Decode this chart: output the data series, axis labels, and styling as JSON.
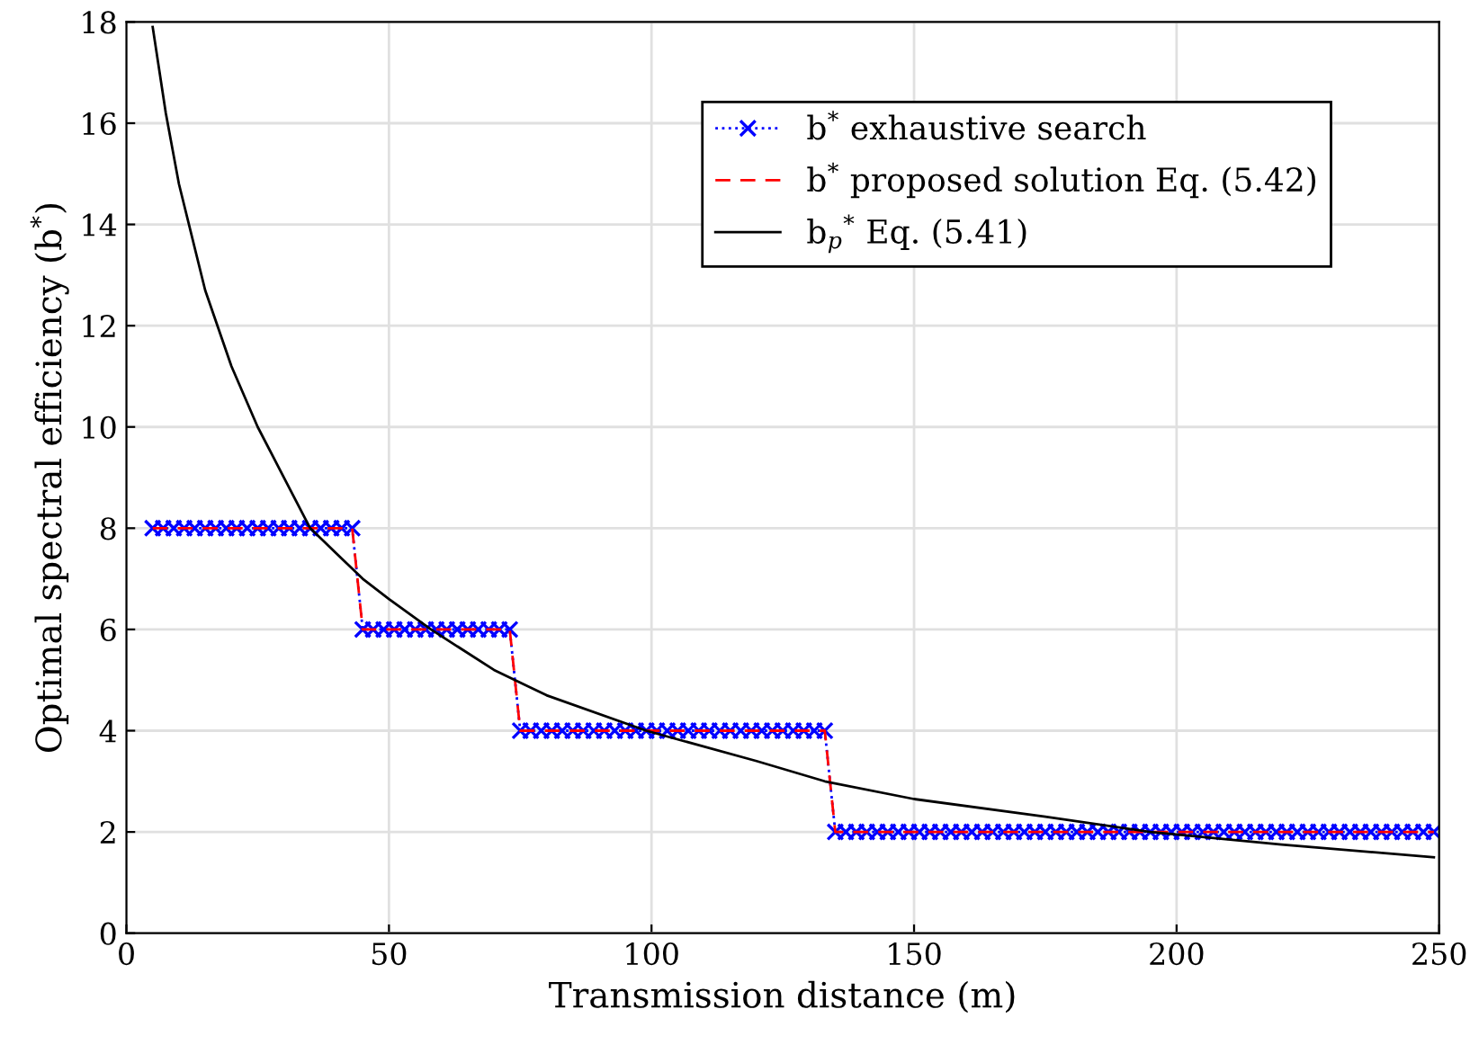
{
  "chart_data": {
    "type": "line",
    "xlabel": "Transmission distance (m)",
    "ylabel": "Optimal spectral efficiency (b$^{*}$)",
    "x": [
      5,
      7,
      9,
      11,
      13,
      15,
      17,
      19,
      21,
      23,
      25,
      27,
      29,
      31,
      33,
      35,
      37,
      39,
      41,
      43,
      45,
      47,
      49,
      51,
      53,
      55,
      57,
      59,
      61,
      63,
      65,
      67,
      69,
      71,
      73,
      75,
      77,
      79,
      81,
      83,
      85,
      87,
      89,
      91,
      93,
      95,
      97,
      99,
      101,
      103,
      105,
      107,
      109,
      111,
      113,
      115,
      117,
      119,
      121,
      123,
      125,
      127,
      129,
      131,
      133,
      135,
      137,
      139,
      141,
      143,
      145,
      147,
      149,
      151,
      153,
      155,
      157,
      159,
      161,
      163,
      165,
      167,
      169,
      171,
      173,
      175,
      177,
      179,
      181,
      183,
      185,
      187,
      189,
      191,
      193,
      195,
      197,
      199,
      201,
      203,
      205,
      207,
      209,
      211,
      213,
      215,
      217,
      219,
      221,
      223,
      225,
      227,
      229,
      231,
      233,
      235,
      237,
      239,
      241,
      243,
      245,
      247,
      249
    ],
    "series": [
      {
        "name": "b$^{*}$ exhaustive search",
        "color": "#0000ff",
        "line_style": "dotted",
        "marker": "cross",
        "values": [
          8,
          8,
          8,
          8,
          8,
          8,
          8,
          8,
          8,
          8,
          8,
          8,
          8,
          8,
          8,
          8,
          8,
          8,
          8,
          8,
          6,
          6,
          6,
          6,
          6,
          6,
          6,
          6,
          6,
          6,
          6,
          6,
          6,
          6,
          6,
          4,
          4,
          4,
          4,
          4,
          4,
          4,
          4,
          4,
          4,
          4,
          4,
          4,
          4,
          4,
          4,
          4,
          4,
          4,
          4,
          4,
          4,
          4,
          4,
          4,
          4,
          4,
          4,
          4,
          4,
          2,
          2,
          2,
          2,
          2,
          2,
          2,
          2,
          2,
          2,
          2,
          2,
          2,
          2,
          2,
          2,
          2,
          2,
          2,
          2,
          2,
          2,
          2,
          2,
          2,
          2,
          2,
          2,
          2,
          2,
          2,
          2,
          2,
          2,
          2,
          2,
          2,
          2,
          2,
          2,
          2,
          2,
          2,
          2,
          2,
          2,
          2,
          2,
          2,
          2,
          2,
          2,
          2,
          2,
          2,
          2,
          2,
          2
        ]
      },
      {
        "name": "b$^{*}$ proposed solution Eq. (5.42)",
        "color": "#ff0000",
        "line_style": "dashed",
        "marker": "none",
        "values": [
          8,
          8,
          8,
          8,
          8,
          8,
          8,
          8,
          8,
          8,
          8,
          8,
          8,
          8,
          8,
          8,
          8,
          8,
          8,
          8,
          6,
          6,
          6,
          6,
          6,
          6,
          6,
          6,
          6,
          6,
          6,
          6,
          6,
          6,
          6,
          4,
          4,
          4,
          4,
          4,
          4,
          4,
          4,
          4,
          4,
          4,
          4,
          4,
          4,
          4,
          4,
          4,
          4,
          4,
          4,
          4,
          4,
          4,
          4,
          4,
          4,
          4,
          4,
          4,
          4,
          2,
          2,
          2,
          2,
          2,
          2,
          2,
          2,
          2,
          2,
          2,
          2,
          2,
          2,
          2,
          2,
          2,
          2,
          2,
          2,
          2,
          2,
          2,
          2,
          2,
          2,
          2,
          2,
          2,
          2,
          2,
          2,
          2,
          2,
          2,
          2,
          2,
          2,
          2,
          2,
          2,
          2,
          2,
          2,
          2,
          2,
          2,
          2,
          2,
          2,
          2,
          2,
          2,
          2,
          2,
          2,
          2,
          2
        ]
      },
      {
        "name": "b$_{p}$$^{*}$ Eq. (5.41)",
        "color": "#000000",
        "line_style": "solid",
        "marker": "none",
        "x": [
          5,
          7.5,
          10,
          15,
          20,
          25,
          30,
          35,
          40,
          45,
          50,
          58,
          70,
          80,
          99,
          120,
          133,
          150,
          175,
          195,
          220,
          249
        ],
        "values": [
          17.9,
          16.2,
          14.8,
          12.7,
          11.2,
          10.0,
          9.0,
          8.0,
          7.5,
          7.0,
          6.6,
          6.0,
          5.2,
          4.7,
          4.0,
          3.4,
          3.0,
          2.65,
          2.3,
          2.0,
          1.75,
          1.5
        ]
      }
    ],
    "xlim": [
      0,
      250
    ],
    "xticks": [
      0,
      50,
      100,
      150,
      200,
      250
    ],
    "ylim": [
      0,
      18
    ],
    "yticks": [
      0,
      2,
      4,
      6,
      8,
      10,
      12,
      14,
      16,
      18
    ],
    "grid": true,
    "legend": "top right"
  }
}
